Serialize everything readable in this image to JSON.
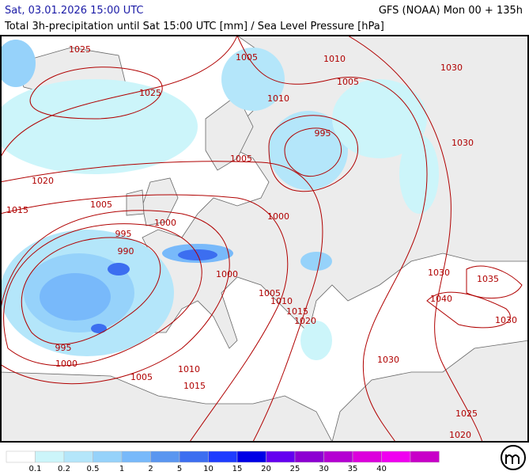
{
  "header": {
    "left": "Sat, 03.01.2026 15:00 UTC",
    "right": "GFS (NOAA) Mon 00 + 135h",
    "subtitle": "Total 3h-precipitation until Sat 15:00 UTC [mm] / Sea Level Pressure [hPa]"
  },
  "isobar_labels": [
    "1025",
    "1025",
    "1005",
    "1010",
    "1030",
    "1005",
    "1010",
    "995",
    "1030",
    "1005",
    "1020",
    "1005",
    "1015",
    "1000",
    "1000",
    "995",
    "990",
    "1000",
    "1030",
    "1035",
    "1005",
    "1010",
    "1040",
    "1015",
    "1020",
    "1030",
    "995",
    "1030",
    "1000",
    "1010",
    "1005",
    "1015",
    "1025",
    "1020"
  ],
  "legend": {
    "colors": [
      "#ffffff",
      "#ccf5fa",
      "#b4e6fa",
      "#96d2fa",
      "#78b9fa",
      "#5a96f0",
      "#3c6ef0",
      "#1e3cff",
      "#0000e6",
      "#6400f0",
      "#8c00d2",
      "#b400d2",
      "#dc00dc",
      "#f000f0",
      "#c800c8"
    ],
    "labels": [
      "0.1",
      "0.2",
      "0.5",
      "1",
      "2",
      "5",
      "10",
      "15",
      "20",
      "25",
      "30",
      "35",
      "40"
    ]
  }
}
